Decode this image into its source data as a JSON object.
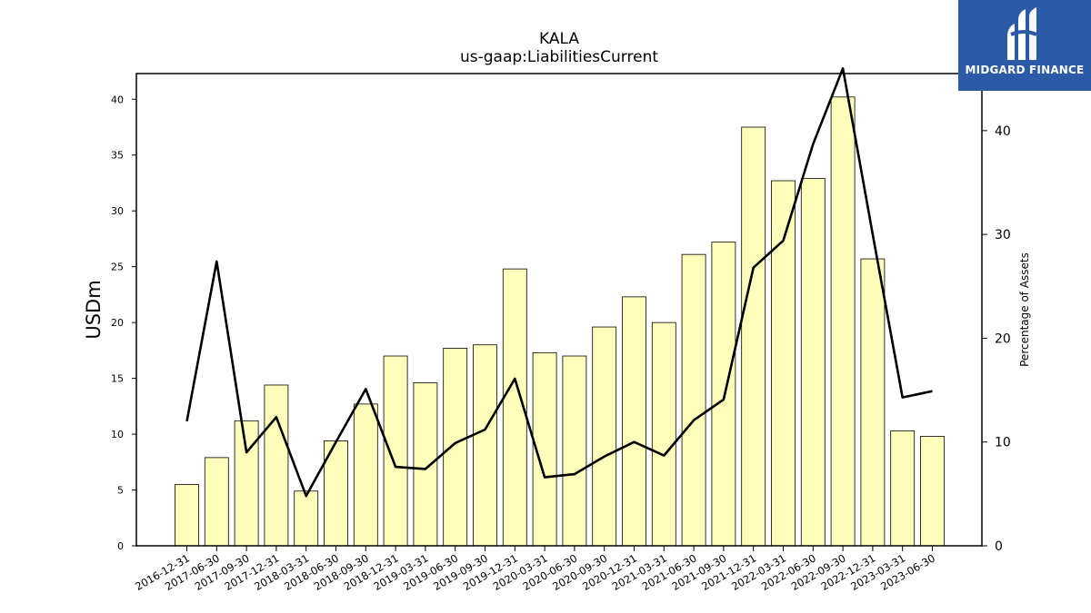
{
  "chart_data": {
    "type": "bar+line",
    "title": "KALA",
    "subtitle": "us-gaap:LiabilitiesCurrent",
    "ylabel": "USDm",
    "y2label": "Percentage of Assets",
    "ylim": [
      0,
      42.3
    ],
    "y2lim": [
      0,
      45.5
    ],
    "yticks": [
      0,
      5,
      10,
      15,
      20,
      25,
      30,
      35,
      40
    ],
    "y2ticks": [
      0,
      10,
      20,
      30,
      40
    ],
    "categories": [
      "2016-12-31",
      "2017-06-30",
      "2017-09-30",
      "2017-12-31",
      "2018-03-31",
      "2018-06-30",
      "2018-09-30",
      "2018-12-31",
      "2019-03-31",
      "2019-06-30",
      "2019-09-30",
      "2019-12-31",
      "2020-03-31",
      "2020-06-30",
      "2020-09-30",
      "2020-12-31",
      "2021-03-31",
      "2021-06-30",
      "2021-09-30",
      "2021-12-31",
      "2022-03-31",
      "2022-06-30",
      "2022-09-30",
      "2022-12-31",
      "2023-03-31",
      "2023-06-30"
    ],
    "series": [
      {
        "kind": "bar",
        "axis": "left",
        "color": "#ffffbb",
        "values": [
          5.5,
          7.9,
          11.2,
          14.4,
          4.9,
          9.4,
          12.7,
          17.0,
          14.6,
          17.7,
          18.0,
          24.8,
          17.3,
          17.0,
          19.6,
          22.3,
          20.0,
          26.1,
          27.2,
          37.5,
          32.7,
          32.9,
          40.2,
          25.7,
          10.3,
          9.8
        ]
      },
      {
        "kind": "line",
        "axis": "right",
        "color": "#000000",
        "values": [
          12.0,
          27.4,
          9.0,
          12.4,
          4.8,
          10.0,
          15.1,
          7.6,
          7.4,
          9.9,
          11.2,
          16.1,
          6.6,
          6.9,
          8.6,
          10.0,
          8.7,
          12.1,
          14.1,
          26.8,
          29.4,
          38.7,
          46.0,
          30.0,
          14.3,
          14.9
        ]
      }
    ],
    "grid": false,
    "legend": "none"
  },
  "logo": {
    "text": "MIDGARD FINANCE",
    "background": "#2b5aa6",
    "icon": "midgard-logo-icon"
  }
}
